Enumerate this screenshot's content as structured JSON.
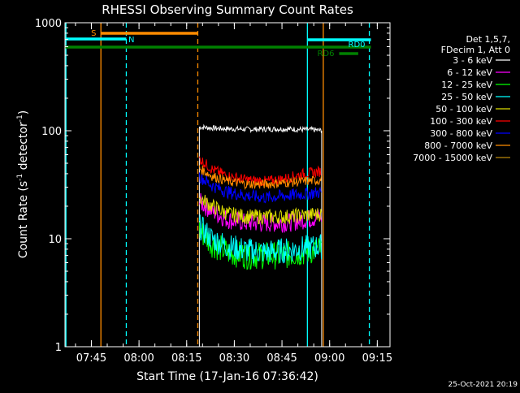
{
  "chart_data": {
    "type": "line",
    "title": "RHESSI Observing Summary Count Rates",
    "xlabel": "Start Time (17-Jan-16 07:36:42)",
    "ylabel_main": "Count Rate (s",
    "ylabel_sup1": "-1",
    "ylabel_mid": " detector",
    "ylabel_sup2": "-1",
    "ylabel_end": ")",
    "footer": "25-Oct-2021 20:19",
    "yscale": "log",
    "ylim": [
      1,
      1000
    ],
    "xlim": [
      "07:36:42",
      "09:19:00"
    ],
    "x_ticks": [
      "07:45",
      "08:00",
      "08:15",
      "08:30",
      "08:45",
      "09:00",
      "09:15"
    ],
    "y_ticks": [
      "1",
      "10",
      "100",
      "1000"
    ],
    "legend": {
      "header": [
        "Det 1,5,7,",
        "FDecim 1, Att 0"
      ],
      "entries": [
        {
          "label": "3 - 6 keV",
          "color": "#000000"
        },
        {
          "label": "6 - 12 keV",
          "color": "#ff00ff"
        },
        {
          "label": "12 - 25 keV",
          "color": "#00ff00"
        },
        {
          "label": "25 - 50 keV",
          "color": "#00ffff"
        },
        {
          "label": "50 - 100 keV",
          "color": "#dddd00"
        },
        {
          "label": "100 - 300 keV",
          "color": "#ff0000"
        },
        {
          "label": "300 - 800 keV",
          "color": "#0000ff"
        },
        {
          "label": "800 - 7000 keV",
          "color": "#ff8c00"
        },
        {
          "label": "7000 - 15000 keV",
          "color": "#b8860b"
        }
      ]
    },
    "flags": [
      {
        "label": "S",
        "color": "#ff8c00",
        "start": "07:48:00",
        "end": "08:18:30"
      },
      {
        "label": "N",
        "color": "#00ffff",
        "start": "07:36:42",
        "end": "07:56:00"
      },
      {
        "label": "RD6",
        "color": "#008000",
        "start": "07:36:42",
        "end": "09:13:00"
      },
      {
        "label": "RD6",
        "color": "#008000",
        "start": "09:03:00",
        "end": "09:09:00"
      },
      {
        "label": "RD0",
        "color": "#00ffff",
        "start": "08:53:00",
        "end": "09:13:00"
      }
    ],
    "vlines": [
      {
        "time": "07:37:00",
        "color": "#00ffff",
        "style": "solid"
      },
      {
        "time": "07:48:00",
        "color": "#ff8c00",
        "style": "solid"
      },
      {
        "time": "07:56:00",
        "color": "#00ffff",
        "style": "dashed"
      },
      {
        "time": "08:18:30",
        "color": "#ff8c00",
        "style": "dashed"
      },
      {
        "time": "08:53:00",
        "color": "#00ffff",
        "style": "solid"
      },
      {
        "time": "08:58:00",
        "color": "#ff8c00",
        "style": "solid"
      },
      {
        "time": "09:12:30",
        "color": "#00ffff",
        "style": "dashed"
      }
    ],
    "series": [
      {
        "color": "#000000",
        "time": [
          "08:19:00",
          "08:25:00",
          "08:35:00",
          "08:45:00",
          "08:55:00",
          "08:57:30"
        ],
        "values": [
          108,
          105,
          103,
          104,
          102,
          100
        ]
      },
      {
        "color": "#ff00ff",
        "time": [
          "08:19:00",
          "08:23:00",
          "08:28:00",
          "08:34:00",
          "08:40:00",
          "08:46:00",
          "08:52:00",
          "08:57:30"
        ],
        "values": [
          22,
          18,
          15,
          14,
          14,
          14,
          15,
          16
        ]
      },
      {
        "color": "#00ff00",
        "time": [
          "08:19:00",
          "08:23:00",
          "08:28:00",
          "08:34:00",
          "08:40:00",
          "08:46:00",
          "08:52:00",
          "08:57:30"
        ],
        "values": [
          12,
          9,
          7.5,
          7,
          7,
          7,
          7.5,
          8
        ]
      },
      {
        "color": "#00ffff",
        "time": [
          "08:19:00",
          "08:23:00",
          "08:28:00",
          "08:34:00",
          "08:40:00",
          "08:46:00",
          "08:52:00",
          "08:57:30"
        ],
        "values": [
          13,
          10,
          8.5,
          7.8,
          7.5,
          7.8,
          8.2,
          8.5
        ]
      },
      {
        "color": "#dddd00",
        "time": [
          "08:19:00",
          "08:23:00",
          "08:28:00",
          "08:34:00",
          "08:40:00",
          "08:46:00",
          "08:52:00",
          "08:57:30"
        ],
        "values": [
          24,
          20,
          17,
          16,
          16,
          16,
          16.5,
          17
        ]
      },
      {
        "color": "#ff0000",
        "time": [
          "08:19:00",
          "08:23:00",
          "08:28:00",
          "08:34:00",
          "08:40:00",
          "08:46:00",
          "08:52:00",
          "08:57:30"
        ],
        "values": [
          55,
          44,
          38,
          35,
          34,
          36,
          40,
          42
        ]
      },
      {
        "color": "#0000ff",
        "time": [
          "08:19:00",
          "08:23:00",
          "08:28:00",
          "08:34:00",
          "08:40:00",
          "08:46:00",
          "08:52:00",
          "08:57:30"
        ],
        "values": [
          38,
          31,
          27,
          25,
          24,
          25,
          26,
          27
        ]
      },
      {
        "color": "#ff8c00",
        "time": [
          "08:19:00",
          "08:23:00",
          "08:28:00",
          "08:34:00",
          "08:40:00",
          "08:46:00",
          "08:52:00",
          "08:57:30"
        ],
        "values": [
          45,
          38,
          34,
          32,
          32,
          33,
          34,
          35
        ]
      }
    ],
    "grid": false
  }
}
